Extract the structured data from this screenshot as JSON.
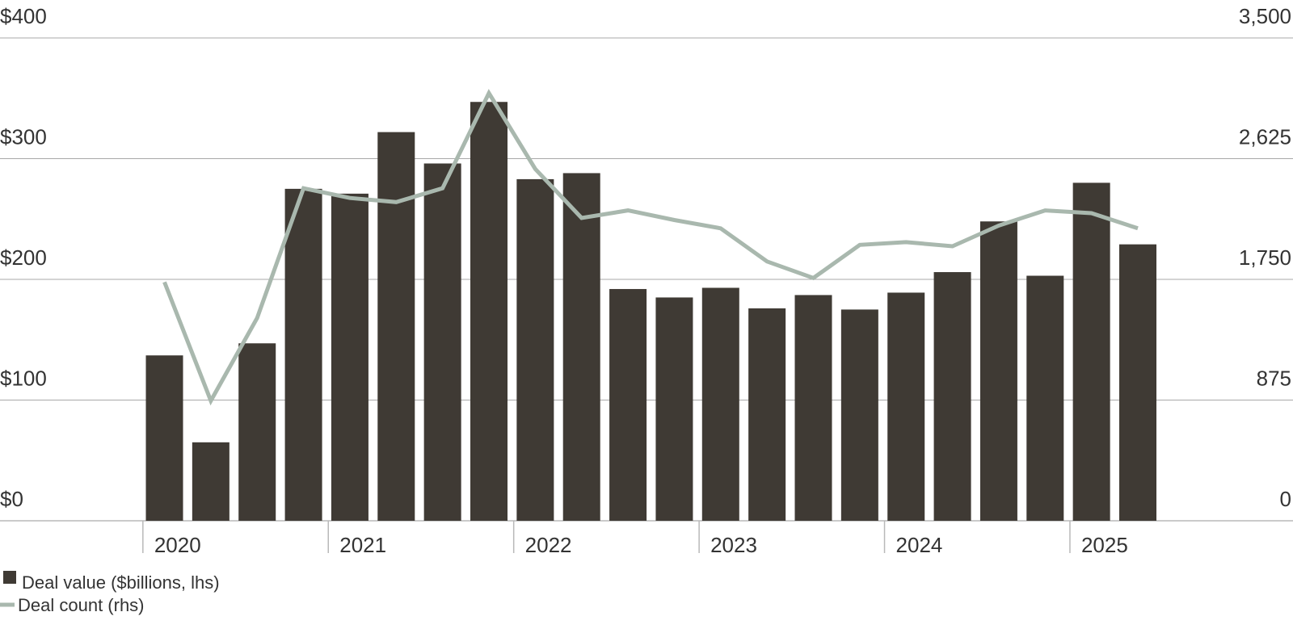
{
  "chart_data": {
    "type": "bar",
    "categories": [
      "Q1 2020",
      "Q2 2020",
      "Q3 2020",
      "Q4 2020",
      "Q1 2021",
      "Q2 2021",
      "Q3 2021",
      "Q4 2021",
      "Q1 2022",
      "Q2 2022",
      "Q3 2022",
      "Q4 2022",
      "Q1 2023",
      "Q2 2023",
      "Q3 2023",
      "Q4 2023",
      "Q1 2024",
      "Q2 2024",
      "Q3 2024",
      "Q4 2024",
      "Q1 2025",
      "Q2 2025"
    ],
    "series": [
      {
        "name": "Deal value ($billions, lhs)",
        "type": "bar",
        "axis": "left",
        "color": "#3f3a34",
        "values": [
          137,
          65,
          147,
          275,
          271,
          322,
          296,
          347,
          283,
          288,
          192,
          185,
          193,
          176,
          187,
          175,
          189,
          206,
          248,
          203,
          280,
          229
        ]
      },
      {
        "name": "Deal count (rhs)",
        "type": "line",
        "axis": "right",
        "color": "#a9b8ae",
        "values": [
          1730,
          870,
          1470,
          2410,
          2340,
          2310,
          2410,
          3100,
          2550,
          2195,
          2250,
          2180,
          2120,
          1880,
          1760,
          2000,
          2020,
          1990,
          2140,
          2250,
          2230,
          2120
        ]
      }
    ],
    "x_ticks": [
      "2020",
      "2021",
      "2022",
      "2023",
      "2024",
      "2025"
    ],
    "y_left": {
      "ylim": [
        0,
        400
      ],
      "ticks": [
        "$0",
        "$100",
        "$200",
        "$300",
        "$400"
      ]
    },
    "y_right": {
      "ylim": [
        0,
        3500
      ],
      "ticks": [
        "0",
        "875",
        "1,750",
        "2,625",
        "3,500"
      ]
    },
    "grid": true,
    "legend_position": "bottom-left",
    "legend": [
      {
        "label": "Deal value ($billions, lhs)",
        "marker": "square",
        "color": "#3f3a34"
      },
      {
        "label": "Deal count (rhs)",
        "marker": "line",
        "color": "#a9b8ae"
      }
    ]
  }
}
